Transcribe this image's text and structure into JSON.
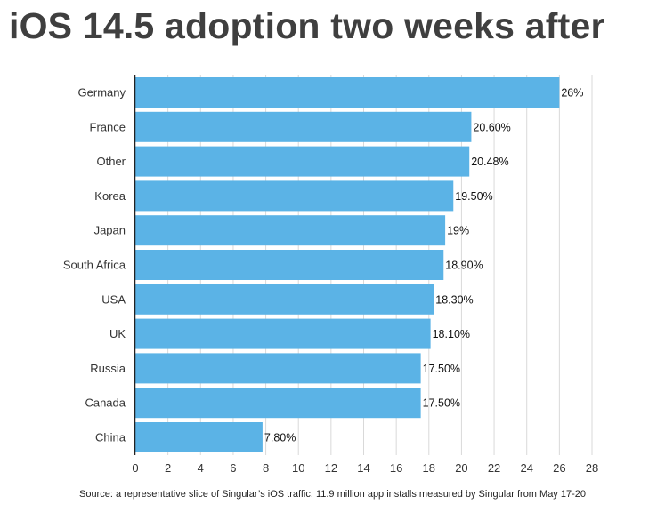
{
  "chart_data": {
    "type": "bar",
    "orientation": "horizontal",
    "title": "iOS 14.5 adoption two weeks after",
    "categories": [
      "Germany",
      "France",
      "Other",
      "Korea",
      "Japan",
      "South Africa",
      "USA",
      "UK",
      "Russia",
      "Canada",
      "China"
    ],
    "values": [
      26,
      20.6,
      20.48,
      19.5,
      19,
      18.9,
      18.3,
      18.1,
      17.5,
      17.5,
      7.8
    ],
    "data_labels": [
      "26%",
      "20.60%",
      "20.48%",
      "19.50%",
      "19%",
      "18.90%",
      "18.30%",
      "18.10%",
      "17.50%",
      "17.50%",
      "7.80%"
    ],
    "xlim": [
      0,
      28
    ],
    "x_ticks": [
      0,
      2,
      4,
      6,
      8,
      10,
      12,
      14,
      16,
      18,
      20,
      22,
      24,
      26,
      28
    ],
    "grid": "vertical",
    "bar_color": "#5bb3e6",
    "source": "Source: a representative slice of Singular’s iOS traffic. 11.9 million app installs measured by Singular from May 17-20"
  }
}
